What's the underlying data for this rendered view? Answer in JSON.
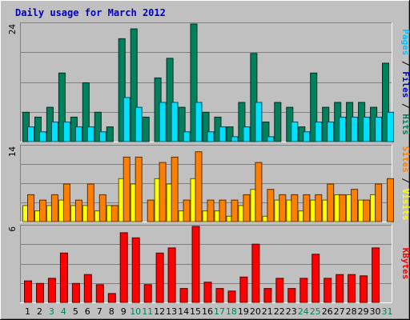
{
  "chart_data": {
    "type": "bar",
    "title": "Daily usage for March 2012",
    "days": [
      "1",
      "2",
      "3",
      "4",
      "5",
      "6",
      "7",
      "8",
      "9",
      "10",
      "11",
      "12",
      "13",
      "14",
      "15",
      "16",
      "17",
      "18",
      "19",
      "20",
      "21",
      "22",
      "23",
      "24",
      "25",
      "26",
      "27",
      "28",
      "29",
      "30",
      "31"
    ],
    "weekend_days": [
      "3",
      "4",
      "10",
      "11",
      "17",
      "18",
      "24",
      "25",
      "31"
    ],
    "colors": {
      "hits": "#00805c",
      "files": "#00e0ff",
      "pages": "#00c0ff",
      "visits": "#ffff00",
      "sites": "#ff8000",
      "kbytes": "#ff0000",
      "weekday_label": "#000000",
      "weekend_label": "#00805c",
      "panel_bg": "#c0c0c0",
      "title": "#0000c0"
    },
    "panels": [
      {
        "ymax_label": "24",
        "ylim": [
          0,
          24
        ],
        "side_label": [
          {
            "text": "Pages",
            "color": "#00c0ff"
          },
          {
            "text": " / ",
            "color": "#000000"
          },
          {
            "text": "Files",
            "color": "#0000c0"
          },
          {
            "text": " / ",
            "color": "#000000"
          },
          {
            "text": "Hits",
            "color": "#00805c"
          }
        ],
        "series": [
          {
            "name": "Hits",
            "color": "#00805c",
            "values": [
              6,
              5,
              7,
              14,
              5,
              12,
              6,
              3,
              21,
              23,
              5,
              13,
              17,
              7,
              24,
              6,
              5,
              3,
              8,
              18,
              4,
              8,
              7,
              3,
              14,
              7,
              8,
              8,
              8,
              7,
              16
            ]
          },
          {
            "name": "Files",
            "color": "#00e0ff",
            "values": [
              3,
              2,
              4,
              4,
              3,
              3,
              2,
              0,
              9,
              7,
              0,
              8,
              8,
              2,
              8,
              2,
              3,
              1,
              3,
              8,
              1,
              0,
              4,
              2,
              4,
              4,
              5,
              5,
              5,
              5,
              6
            ]
          }
        ]
      },
      {
        "ymax_label": "14",
        "ylim": [
          0,
          14
        ],
        "side_label": [
          {
            "text": "Sites",
            "color": "#ff8000"
          },
          {
            "text": " / ",
            "color": "#000000"
          },
          {
            "text": "Visits",
            "color": "#ffff00"
          }
        ],
        "series": [
          {
            "name": "Visits",
            "color": "#ffff00",
            "values": [
              3,
              2,
              3,
              4,
              3,
              3,
              2,
              3,
              8,
              7,
              0,
              8,
              7,
              2,
              8,
              2,
              2,
              1,
              3,
              6,
              1,
              4,
              4,
              2,
              4,
              4,
              5,
              5,
              4,
              5,
              0
            ]
          },
          {
            "name": "Sites",
            "color": "#ff8000",
            "values": [
              5,
              4,
              5,
              7,
              4,
              7,
              5,
              3,
              12,
              12,
              4,
              11,
              12,
              4,
              13,
              4,
              4,
              4,
              5,
              11,
              6,
              5,
              5,
              5,
              5,
              7,
              5,
              6,
              4,
              7,
              8
            ]
          }
        ]
      },
      {
        "ymax_label": "6",
        "ylim": [
          0,
          6
        ],
        "side_label": [
          {
            "text": "KBytes",
            "color": "#ff0000"
          }
        ],
        "series": [
          {
            "name": "KBytes",
            "color": "#ff0000",
            "values": [
              1.7,
              1.5,
              1.9,
              3.9,
              1.5,
              2.2,
              1.4,
              0.7,
              5.5,
              5.1,
              1.4,
              3.9,
              4.3,
              1.1,
              6.0,
              1.6,
              1.1,
              0.9,
              2.0,
              4.6,
              1.1,
              1.9,
              1.1,
              1.9,
              3.8,
              1.9,
              2.2,
              2.2,
              2.1,
              4.3,
              0
            ]
          }
        ]
      }
    ]
  }
}
